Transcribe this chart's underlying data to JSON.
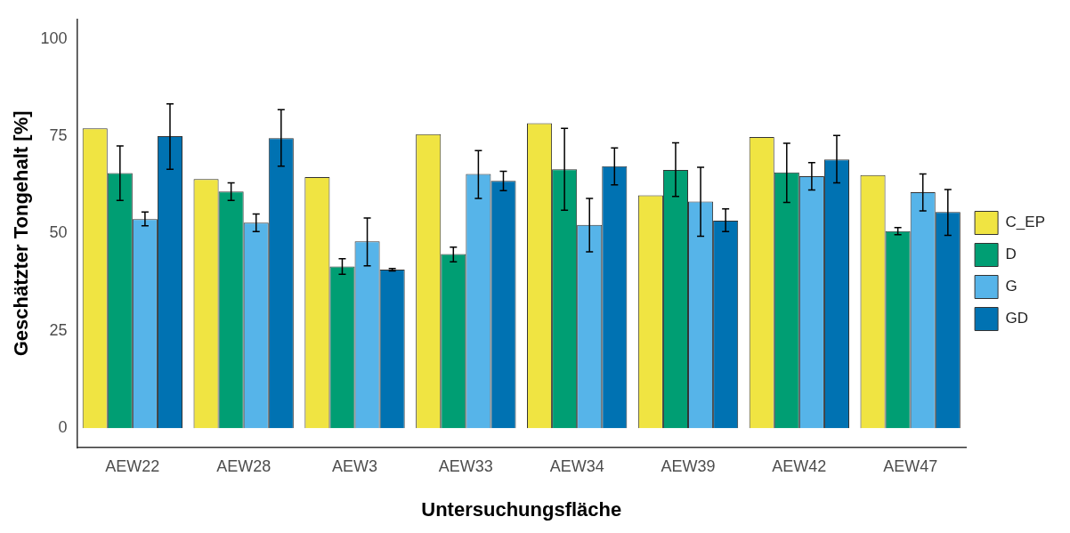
{
  "chart_data": {
    "type": "bar",
    "xlabel": "Untersuchungsfläche",
    "ylabel": "Geschätzter Tongehalt [%]",
    "categories": [
      "AEW22",
      "AEW28",
      "AEW3",
      "AEW33",
      "AEW34",
      "AEW39",
      "AEW42",
      "AEW47"
    ],
    "series": [
      {
        "name": "C_EP",
        "color": "#f0e442",
        "values": [
          77,
          64,
          64.5,
          75.5,
          78.3,
          59.8,
          74.8,
          65
        ]
      },
      {
        "name": "D",
        "color": "#009e73",
        "values": [
          65.5,
          60.8,
          41.5,
          44.7,
          66.5,
          66.3,
          65.7,
          50.6
        ],
        "errors": [
          [
            58.5,
            72.5
          ],
          [
            58.5,
            63
          ],
          [
            39.5,
            43.5
          ],
          [
            42.7,
            46.5
          ],
          [
            56,
            77
          ],
          [
            59.5,
            73.3
          ],
          [
            58,
            73.2
          ],
          [
            49.7,
            51.5
          ]
        ]
      },
      {
        "name": "G",
        "color": "#56b4e9",
        "values": [
          53.7,
          52.8,
          48,
          65.3,
          52.2,
          58.2,
          64.7,
          60.6
        ],
        "errors": [
          [
            52,
            55.5
          ],
          [
            50.5,
            55
          ],
          [
            41.7,
            54
          ],
          [
            59,
            71.3
          ],
          [
            45.3,
            59
          ],
          [
            49.3,
            67
          ],
          [
            61.2,
            68.2
          ],
          [
            55.8,
            65.3
          ]
        ]
      },
      {
        "name": "GD",
        "color": "#0072b2",
        "values": [
          75,
          74.5,
          40.7,
          63.5,
          67.3,
          53.3,
          69,
          55.5
        ],
        "errors": [
          [
            66.5,
            83.3
          ],
          [
            67.3,
            81.8
          ],
          [
            40.4,
            41
          ],
          [
            61,
            66
          ],
          [
            62.5,
            72
          ],
          [
            50.5,
            56.3
          ],
          [
            63,
            75.2
          ],
          [
            49.5,
            61.3
          ]
        ]
      }
    ],
    "ylim": [
      -5,
      105
    ],
    "yticks": [
      0,
      25,
      50,
      75,
      100
    ],
    "grid": false,
    "legend": "right"
  }
}
